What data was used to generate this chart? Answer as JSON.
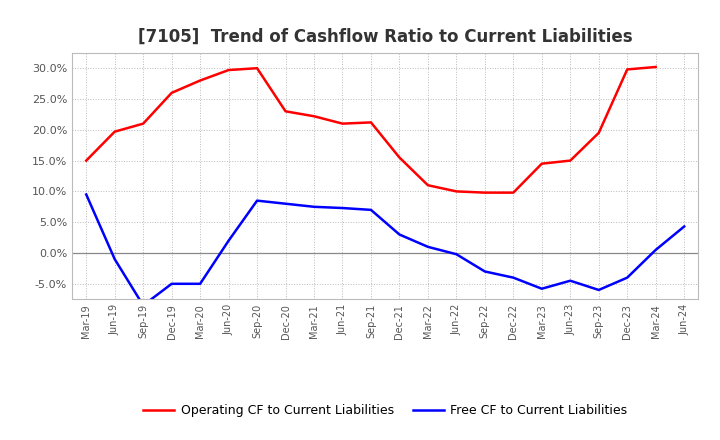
{
  "title": "[7105]  Trend of Cashflow Ratio to Current Liabilities",
  "x_labels": [
    "Mar-19",
    "Jun-19",
    "Sep-19",
    "Dec-19",
    "Mar-20",
    "Jun-20",
    "Sep-20",
    "Dec-20",
    "Mar-21",
    "Jun-21",
    "Sep-21",
    "Dec-21",
    "Mar-22",
    "Jun-22",
    "Sep-22",
    "Dec-22",
    "Mar-23",
    "Jun-23",
    "Sep-23",
    "Dec-23",
    "Mar-24",
    "Jun-24"
  ],
  "operating_cf": [
    0.15,
    0.197,
    0.21,
    0.26,
    0.28,
    0.297,
    0.3,
    0.23,
    0.222,
    0.21,
    0.212,
    0.155,
    0.11,
    0.1,
    0.098,
    0.098,
    0.145,
    0.15,
    0.195,
    0.298,
    0.302,
    null
  ],
  "free_cf": [
    0.095,
    -0.01,
    -0.085,
    -0.05,
    -0.05,
    0.02,
    0.085,
    0.08,
    0.075,
    0.073,
    0.07,
    0.03,
    0.01,
    -0.002,
    -0.03,
    -0.04,
    -0.058,
    -0.045,
    -0.06,
    -0.04,
    0.005,
    0.043
  ],
  "operating_color": "#ff0000",
  "free_color": "#0000ff",
  "ylim": [
    -0.075,
    0.325
  ],
  "yticks": [
    -0.05,
    0.0,
    0.05,
    0.1,
    0.15,
    0.2,
    0.25,
    0.3
  ],
  "bg_color": "#ffffff",
  "plot_bg_color": "#f0f0f0",
  "grid_color": "#bbbbbb",
  "zero_line_color": "#888888",
  "title_fontsize": 12,
  "title_color": "#333333",
  "tick_color": "#555555",
  "legend_op": "Operating CF to Current Liabilities",
  "legend_free": "Free CF to Current Liabilities",
  "line_width": 1.8
}
